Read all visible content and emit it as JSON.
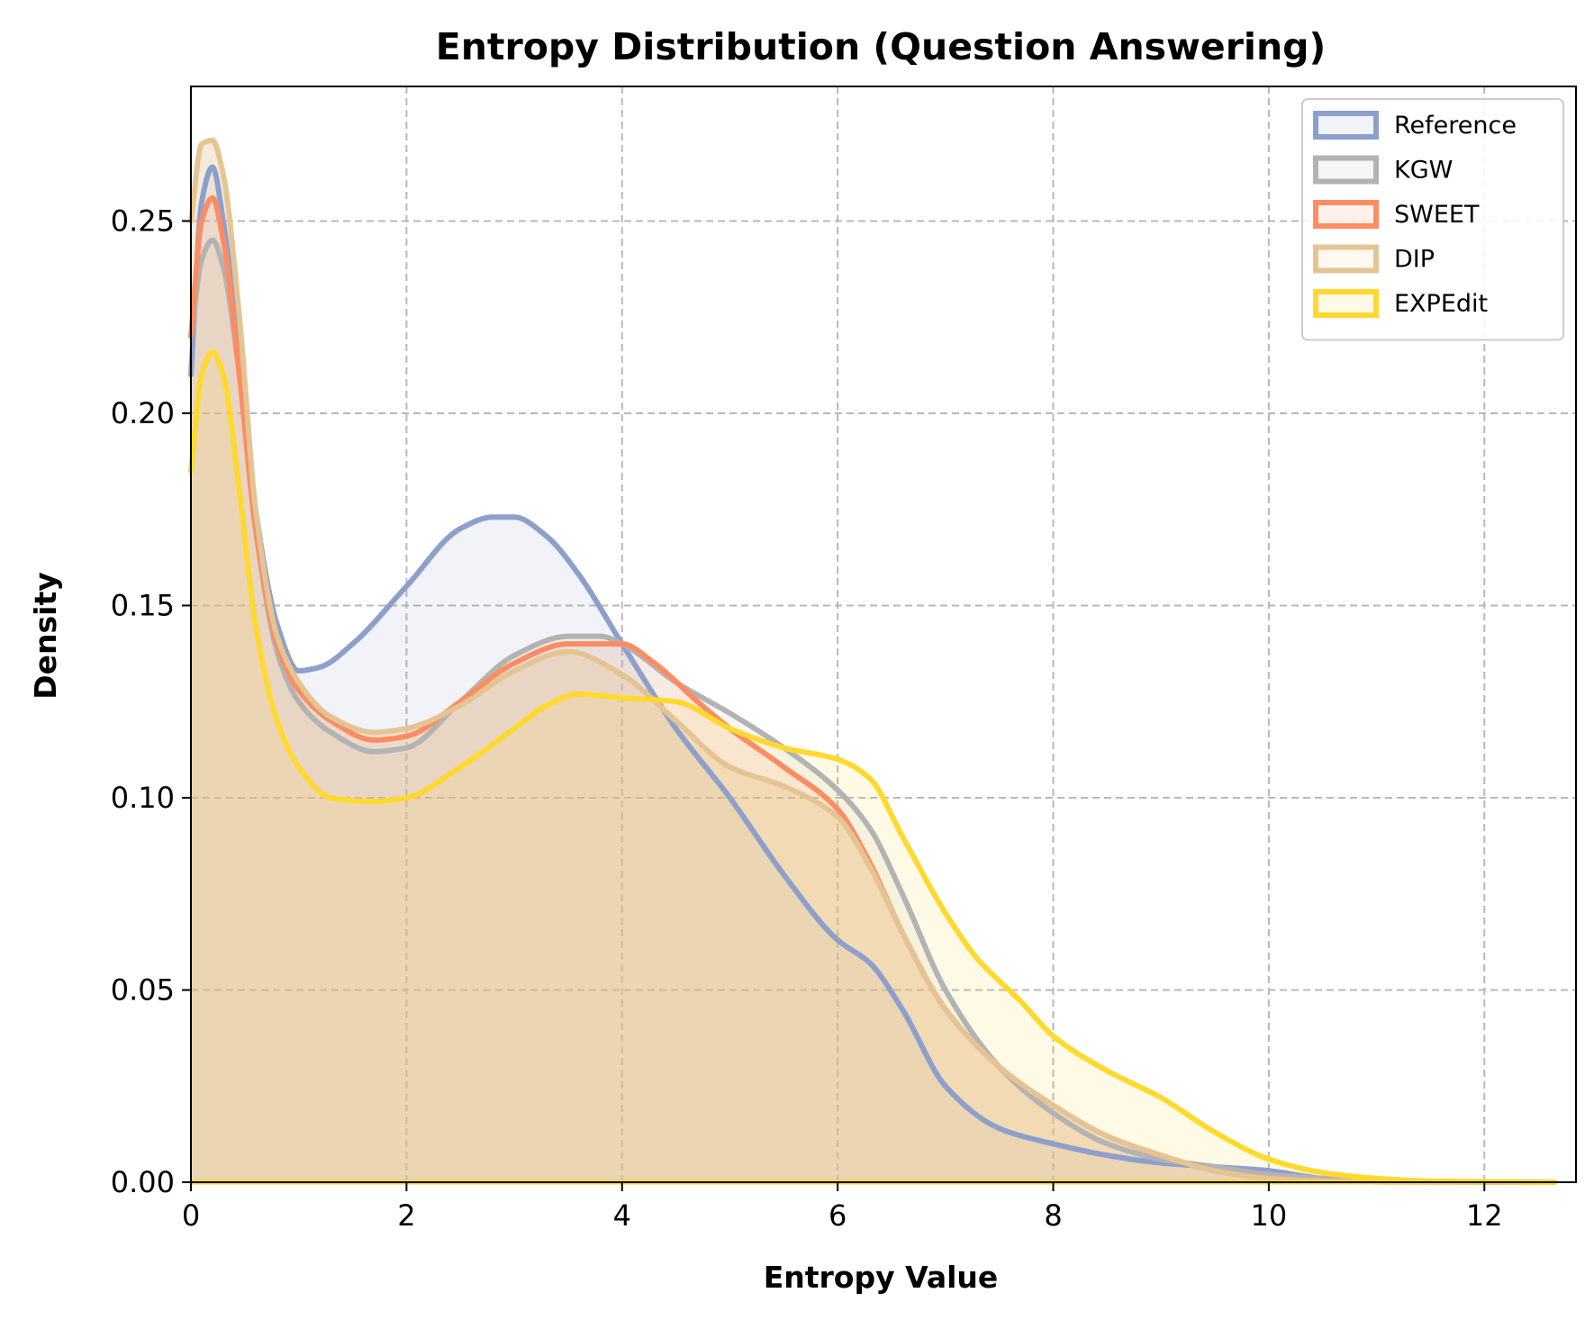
{
  "chart_data": {
    "type": "area",
    "title": "Entropy Distribution (Question Answering)",
    "xlabel": "Entropy Value",
    "ylabel": "Density",
    "xlim": [
      0,
      12.85
    ],
    "ylim": [
      0,
      0.285
    ],
    "xticks": [
      0,
      2,
      4,
      6,
      8,
      10,
      12
    ],
    "yticks": [
      0.0,
      0.05,
      0.1,
      0.15,
      0.2,
      0.25
    ],
    "xtick_labels": [
      "0",
      "2",
      "4",
      "6",
      "8",
      "10",
      "12"
    ],
    "ytick_labels": [
      "0.00",
      "0.05",
      "0.10",
      "0.15",
      "0.20",
      "0.25"
    ],
    "grid": true,
    "legend_position": "top-right",
    "series": [
      {
        "name": "Reference",
        "color": "#8da0cb",
        "fill_opacity": 0.12,
        "x": [
          0,
          0.1,
          0.2,
          0.3,
          0.45,
          0.6,
          0.8,
          1.0,
          1.2,
          1.5,
          2.0,
          2.5,
          2.8,
          3.0,
          3.3,
          3.6,
          4.0,
          4.5,
          5.0,
          5.5,
          6.0,
          6.3,
          6.6,
          7.0,
          7.5,
          8.0,
          8.5,
          9.0,
          9.5,
          10.0,
          10.5,
          11.0,
          12.65
        ],
        "y": [
          0.21,
          0.255,
          0.264,
          0.25,
          0.215,
          0.175,
          0.145,
          0.133,
          0.134,
          0.14,
          0.155,
          0.17,
          0.173,
          0.173,
          0.168,
          0.158,
          0.14,
          0.118,
          0.1,
          0.08,
          0.063,
          0.057,
          0.045,
          0.025,
          0.014,
          0.01,
          0.007,
          0.005,
          0.004,
          0.003,
          0.001,
          0.0003,
          0.0
        ]
      },
      {
        "name": "KGW",
        "color": "#b3b3b3",
        "fill_opacity": 0.12,
        "x": [
          0,
          0.1,
          0.2,
          0.3,
          0.45,
          0.6,
          0.8,
          1.0,
          1.3,
          1.7,
          2.0,
          2.5,
          3.0,
          3.5,
          3.8,
          4.0,
          4.5,
          5.0,
          5.5,
          6.0,
          6.3,
          6.6,
          7.0,
          7.5,
          8.0,
          8.5,
          9.0,
          9.5,
          10.0,
          10.5,
          11.0,
          12.65
        ],
        "y": [
          0.22,
          0.24,
          0.245,
          0.238,
          0.21,
          0.17,
          0.138,
          0.125,
          0.117,
          0.112,
          0.113,
          0.125,
          0.137,
          0.142,
          0.142,
          0.14,
          0.13,
          0.122,
          0.113,
          0.102,
          0.092,
          0.075,
          0.05,
          0.03,
          0.018,
          0.01,
          0.006,
          0.004,
          0.002,
          0.001,
          0.0003,
          0.0
        ]
      },
      {
        "name": "SWEET",
        "color": "#fc8d62",
        "fill_opacity": 0.12,
        "x": [
          0,
          0.1,
          0.2,
          0.3,
          0.45,
          0.6,
          0.8,
          1.0,
          1.3,
          1.7,
          2.0,
          2.5,
          3.0,
          3.5,
          4.0,
          4.3,
          4.7,
          5.0,
          5.5,
          6.0,
          6.3,
          6.6,
          7.0,
          7.5,
          8.0,
          8.5,
          9.0,
          9.5,
          10.0,
          10.5,
          11.0,
          12.65
        ],
        "y": [
          0.22,
          0.25,
          0.256,
          0.245,
          0.21,
          0.17,
          0.14,
          0.128,
          0.12,
          0.115,
          0.116,
          0.125,
          0.135,
          0.14,
          0.14,
          0.135,
          0.125,
          0.118,
          0.108,
          0.097,
          0.083,
          0.065,
          0.045,
          0.03,
          0.02,
          0.012,
          0.007,
          0.003,
          0.001,
          0.0003,
          0.0001,
          0.0
        ]
      },
      {
        "name": "DIP",
        "color": "#e5c494",
        "fill_opacity": 0.35,
        "x": [
          0,
          0.1,
          0.2,
          0.3,
          0.45,
          0.6,
          0.8,
          1.0,
          1.3,
          1.7,
          2.0,
          2.5,
          3.0,
          3.5,
          4.0,
          4.5,
          5.0,
          5.5,
          6.0,
          6.3,
          6.6,
          7.0,
          7.5,
          8.0,
          8.5,
          9.0,
          9.5,
          10.0,
          10.5,
          11.0,
          12.65
        ],
        "y": [
          0.25,
          0.27,
          0.271,
          0.262,
          0.225,
          0.175,
          0.142,
          0.13,
          0.121,
          0.117,
          0.118,
          0.124,
          0.133,
          0.138,
          0.132,
          0.12,
          0.108,
          0.103,
          0.095,
          0.082,
          0.065,
          0.045,
          0.03,
          0.02,
          0.012,
          0.007,
          0.003,
          0.001,
          0.0003,
          0.0001,
          0.0
        ]
      },
      {
        "name": "EXPEdit",
        "color": "#ffd92f",
        "fill_opacity": 0.12,
        "x": [
          0,
          0.1,
          0.2,
          0.3,
          0.45,
          0.6,
          0.8,
          1.0,
          1.3,
          1.7,
          2.0,
          2.5,
          3.0,
          3.3,
          3.6,
          4.0,
          4.5,
          5.0,
          5.5,
          6.0,
          6.3,
          6.6,
          7.0,
          7.3,
          7.7,
          8.0,
          8.5,
          9.0,
          9.5,
          10.0,
          10.5,
          11.0,
          11.5,
          12.65
        ],
        "y": [
          0.185,
          0.21,
          0.216,
          0.21,
          0.18,
          0.145,
          0.12,
          0.108,
          0.1,
          0.099,
          0.1,
          0.108,
          0.118,
          0.124,
          0.127,
          0.126,
          0.125,
          0.118,
          0.113,
          0.11,
          0.105,
          0.09,
          0.07,
          0.058,
          0.047,
          0.038,
          0.029,
          0.022,
          0.013,
          0.006,
          0.0025,
          0.001,
          0.0003,
          0.0
        ]
      }
    ]
  }
}
